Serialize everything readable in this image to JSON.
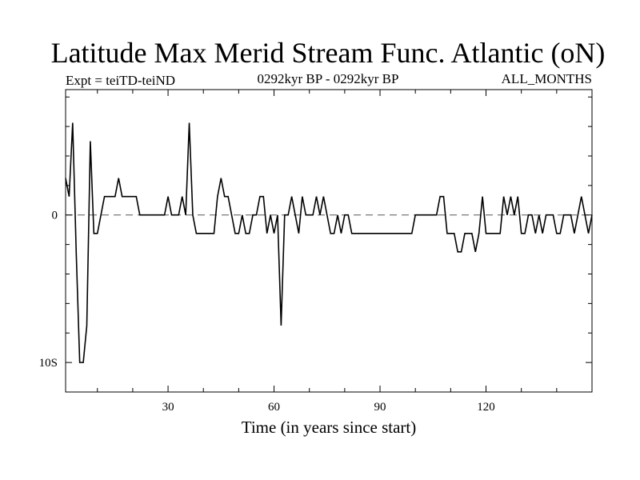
{
  "header": {
    "title": "Latitude Max Merid Stream Func. Atlantic (oN)",
    "expt": "Expt = teiTD-teiND",
    "period": "0292kyr BP - 0292kyr BP",
    "months": "ALL_MONTHS"
  },
  "chart_data": {
    "type": "line",
    "title": "Latitude Max Merid Stream Func. Atlantic (oN)",
    "xlabel": "Time (in years since start)",
    "ylabel": "",
    "xlim": [
      1,
      150
    ],
    "ylim": [
      -12,
      8.5
    ],
    "x_ticks": [
      {
        "value": 30,
        "label": "30"
      },
      {
        "value": 60,
        "label": "60"
      },
      {
        "value": 90,
        "label": "90"
      },
      {
        "value": 120,
        "label": "120"
      }
    ],
    "y_ticks": [
      {
        "value": 0,
        "label": "0"
      },
      {
        "value": -10,
        "label": "10S"
      }
    ],
    "zero_line": {
      "value": 0,
      "style": "dashed"
    },
    "grid": false,
    "series": [
      {
        "values": [
          2.5,
          1.25,
          6.25,
          -2.5,
          -10,
          -10,
          -7.5,
          5,
          -1.25,
          -1.25,
          0,
          1.25,
          1.25,
          1.25,
          1.25,
          2.5,
          1.25,
          1.25,
          1.25,
          1.25,
          1.25,
          0,
          0,
          0,
          0,
          0,
          0,
          0,
          0,
          1.25,
          0,
          0,
          0,
          1.25,
          0,
          6.25,
          0,
          -1.25,
          -1.25,
          -1.25,
          -1.25,
          -1.25,
          -1.25,
          1.25,
          2.5,
          1.25,
          1.25,
          0,
          -1.25,
          -1.25,
          0,
          -1.25,
          -1.25,
          0,
          0,
          1.25,
          1.25,
          -1.25,
          0,
          -1.25,
          0,
          -7.5,
          0,
          0,
          1.25,
          0,
          -1.25,
          1.25,
          0,
          0,
          0,
          1.25,
          0,
          1.25,
          0,
          -1.25,
          -1.25,
          0,
          -1.25,
          0,
          0,
          -1.25,
          -1.25,
          -1.25,
          -1.25,
          -1.25,
          -1.25,
          -1.25,
          -1.25,
          -1.25,
          -1.25,
          -1.25,
          -1.25,
          -1.25,
          -1.25,
          -1.25,
          -1.25,
          -1.25,
          -1.25,
          0,
          0,
          0,
          0,
          0,
          0,
          0,
          1.25,
          1.25,
          -1.25,
          -1.25,
          -1.25,
          -2.5,
          -2.5,
          -1.25,
          -1.25,
          -1.25,
          -2.5,
          -1.25,
          1.25,
          -1.25,
          -1.25,
          -1.25,
          -1.25,
          -1.25,
          1.25,
          0,
          1.25,
          0,
          1.25,
          -1.25,
          -1.25,
          0,
          0,
          -1.25,
          0,
          -1.25,
          0,
          0,
          0,
          -1.25,
          -1.25,
          0,
          0,
          0,
          -1.25,
          0,
          1.25,
          0,
          -1.25,
          0
        ]
      }
    ]
  }
}
